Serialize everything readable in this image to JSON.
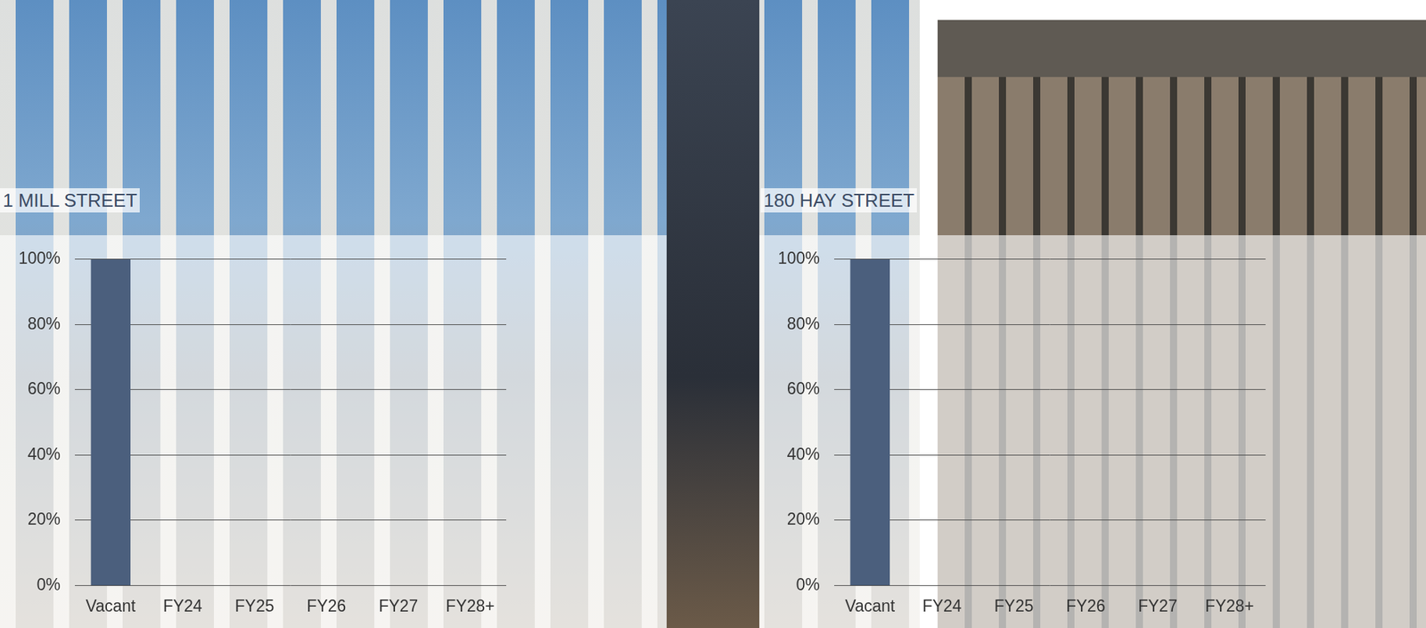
{
  "chart_data": [
    {
      "type": "bar",
      "title": "1 MILL STREET",
      "categories": [
        "Vacant",
        "FY24",
        "FY25",
        "FY26",
        "FY27",
        "FY28+"
      ],
      "values": [
        100,
        0,
        0,
        0,
        0,
        0
      ],
      "color": "#4b5f7d",
      "ylim": [
        0,
        100
      ],
      "yticks": [
        {
          "value": 0,
          "label": "0%"
        },
        {
          "value": 20,
          "label": "20%"
        },
        {
          "value": 40,
          "label": "40%"
        },
        {
          "value": 60,
          "label": "60%"
        },
        {
          "value": 80,
          "label": "80%"
        },
        {
          "value": 100,
          "label": "100%"
        }
      ],
      "grid": true
    },
    {
      "type": "bar",
      "title": "180 HAY STREET",
      "categories": [
        "Vacant",
        "FY24",
        "FY25",
        "FY26",
        "FY27",
        "FY28+"
      ],
      "values": [
        100,
        0,
        0,
        0,
        0,
        0
      ],
      "color": "#4b5f7d",
      "ylim": [
        0,
        100
      ],
      "yticks": [
        {
          "value": 0,
          "label": "0%"
        },
        {
          "value": 20,
          "label": "20%"
        },
        {
          "value": 40,
          "label": "40%"
        },
        {
          "value": 60,
          "label": "60%"
        },
        {
          "value": 80,
          "label": "80%"
        },
        {
          "value": 100,
          "label": "100%"
        }
      ],
      "grid": true
    }
  ]
}
